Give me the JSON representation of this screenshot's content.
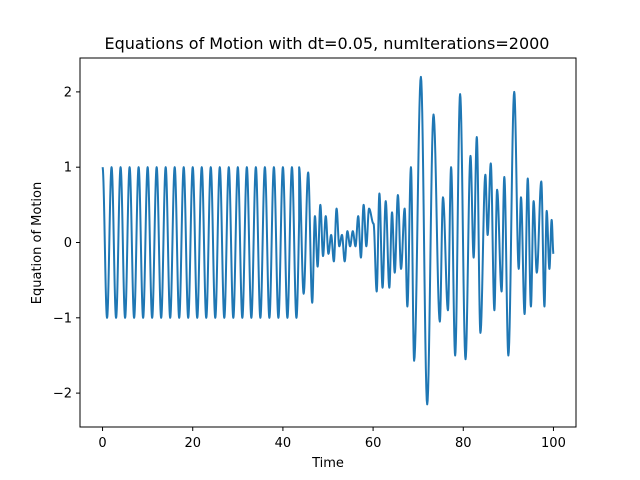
{
  "chart_data": {
    "type": "line",
    "title": "Equations of Motion with dt=0.05, numIterations=2000",
    "xlabel": "Time",
    "ylabel": "Equation of Motion",
    "xlim": [
      -5,
      105
    ],
    "ylim": [
      -2.45,
      2.45
    ],
    "xticks": [
      0,
      20,
      40,
      60,
      80,
      100
    ],
    "xtick_labels": [
      "0",
      "20",
      "40",
      "60",
      "80",
      "100"
    ],
    "yticks": [
      -2,
      -1,
      0,
      1,
      2
    ],
    "ytick_labels": [
      "−2",
      "−1",
      "0",
      "1",
      "2"
    ],
    "grid": false,
    "legend": "none",
    "series": [
      {
        "color": "#1f77b4",
        "segments": [
          {
            "x_start": 0,
            "x_end": 43.6,
            "kind": "sine",
            "amplitude": 1.0,
            "period": 2.0
          },
          {
            "x_start": 43.6,
            "x_end": 100,
            "kind": "peaks",
            "points": [
              [
                43.6,
                1.0
              ],
              [
                44.6,
                -0.68
              ],
              [
                45.6,
                0.93
              ],
              [
                46.5,
                -0.8
              ],
              [
                47.1,
                0.35
              ],
              [
                47.7,
                -0.32
              ],
              [
                48.3,
                0.5
              ],
              [
                48.9,
                -0.18
              ],
              [
                49.5,
                0.35
              ],
              [
                50.1,
                -0.15
              ],
              [
                50.7,
                0.1
              ],
              [
                51.3,
                -0.25
              ],
              [
                51.9,
                0.45
              ],
              [
                52.5,
                -0.05
              ],
              [
                53.1,
                0.1
              ],
              [
                53.7,
                -0.25
              ],
              [
                54.3,
                0.15
              ],
              [
                54.9,
                -0.05
              ],
              [
                55.5,
                0.15
              ],
              [
                56.1,
                -0.05
              ],
              [
                56.7,
                0.35
              ],
              [
                57.3,
                -0.2
              ],
              [
                57.9,
                0.5
              ],
              [
                58.5,
                -0.05
              ],
              [
                59.1,
                0.45
              ],
              [
                60.1,
                0.25
              ],
              [
                60.8,
                -0.65
              ],
              [
                61.4,
                0.65
              ],
              [
                62.1,
                -0.6
              ],
              [
                62.8,
                0.55
              ],
              [
                63.6,
                -0.6
              ],
              [
                64.2,
                0.4
              ],
              [
                64.8,
                -0.4
              ],
              [
                65.5,
                0.63
              ],
              [
                66.2,
                -0.35
              ],
              [
                67.0,
                0.45
              ],
              [
                67.6,
                -0.85
              ],
              [
                68.4,
                1.0
              ],
              [
                69.1,
                -1.57
              ],
              [
                70.6,
                2.2
              ],
              [
                72.0,
                -2.15
              ],
              [
                73.4,
                1.7
              ],
              [
                74.8,
                -1.05
              ],
              [
                75.5,
                0.6
              ],
              [
                76.6,
                -0.9
              ],
              [
                77.3,
                1.0
              ],
              [
                78.2,
                -1.5
              ],
              [
                79.3,
                1.97
              ],
              [
                80.5,
                -1.55
              ],
              [
                81.6,
                1.15
              ],
              [
                82.3,
                -0.2
              ],
              [
                83.0,
                1.4
              ],
              [
                83.8,
                -1.2
              ],
              [
                84.9,
                0.9
              ],
              [
                85.4,
                0.1
              ],
              [
                86.1,
                1.05
              ],
              [
                86.9,
                -0.9
              ],
              [
                87.5,
                0.7
              ],
              [
                88.5,
                -0.65
              ],
              [
                89.1,
                0.87
              ],
              [
                90.0,
                -1.5
              ],
              [
                91.3,
                2.0
              ],
              [
                92.3,
                -0.35
              ],
              [
                92.8,
                0.6
              ],
              [
                93.6,
                -0.95
              ],
              [
                94.3,
                0.85
              ],
              [
                95.0,
                -0.85
              ],
              [
                95.6,
                0.55
              ],
              [
                96.3,
                -0.4
              ],
              [
                97.3,
                0.81
              ],
              [
                98.0,
                -0.85
              ],
              [
                98.5,
                0.42
              ],
              [
                99.1,
                -0.35
              ],
              [
                99.6,
                0.3
              ],
              [
                100.0,
                -0.15
              ]
            ]
          }
        ]
      }
    ]
  }
}
